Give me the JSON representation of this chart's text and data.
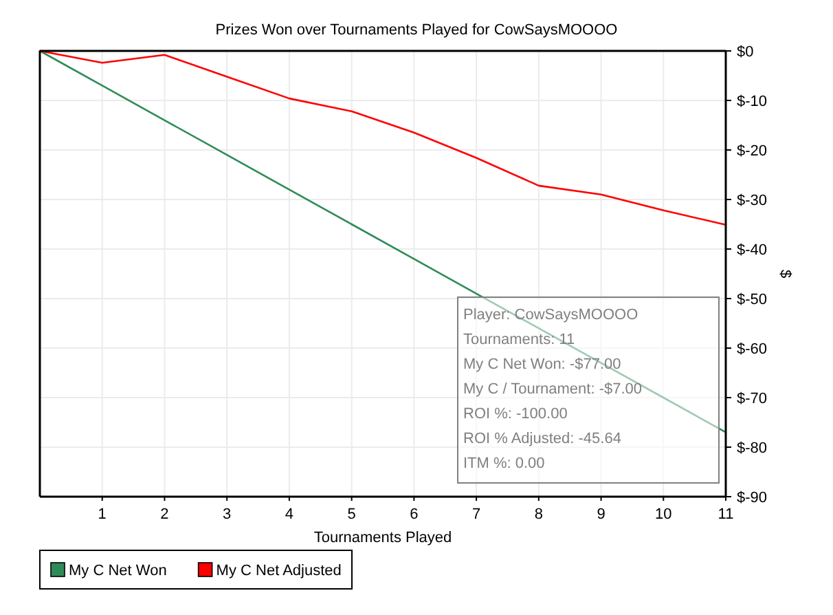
{
  "chart_data": {
    "type": "line",
    "title": "Prizes Won over Tournaments Played for CowSaysMOOOO",
    "xlabel": "Tournaments Played",
    "y2label": "$",
    "x": [
      0,
      1,
      2,
      3,
      4,
      5,
      6,
      7,
      8,
      9,
      10,
      11
    ],
    "xlim": [
      0,
      11
    ],
    "xticks": [
      1,
      2,
      3,
      4,
      5,
      6,
      7,
      8,
      9,
      10,
      11
    ],
    "y2lim": [
      -90,
      0
    ],
    "y2ticks": [
      {
        "value": 0,
        "label": "$0"
      },
      {
        "value": -10,
        "label": "$-10"
      },
      {
        "value": -20,
        "label": "$-20"
      },
      {
        "value": -30,
        "label": "$-30"
      },
      {
        "value": -40,
        "label": "$-40"
      },
      {
        "value": -50,
        "label": "$-50"
      },
      {
        "value": -60,
        "label": "$-60"
      },
      {
        "value": -70,
        "label": "$-70"
      },
      {
        "value": -80,
        "label": "$-80"
      },
      {
        "value": -90,
        "label": "$-90"
      }
    ],
    "series": [
      {
        "name": "My C Net Won",
        "color": "#2e8b57",
        "axis": "y2",
        "values": [
          0,
          -7,
          -14,
          -21,
          -28,
          -35,
          -42,
          -49,
          -56,
          -63,
          -70,
          -77
        ]
      },
      {
        "name": "My C Net Adjusted",
        "color": "#ff0000",
        "axis": "y2",
        "values": [
          0,
          -2.4,
          -0.8,
          -5.2,
          -9.6,
          -12.2,
          -16.5,
          -21.6,
          -27.2,
          -29.0,
          -32.2,
          -35.1
        ]
      }
    ],
    "grid": true,
    "legend": "bottom",
    "annotations": [
      "Player: CowSaysMOOOO",
      "Tournaments: 11",
      "My C Net Won: -$77.00",
      "My C / Tournament: -$7.00",
      "ROI %: -100.00",
      "ROI % Adjusted: -45.64",
      "ITM %: 0.00"
    ]
  }
}
